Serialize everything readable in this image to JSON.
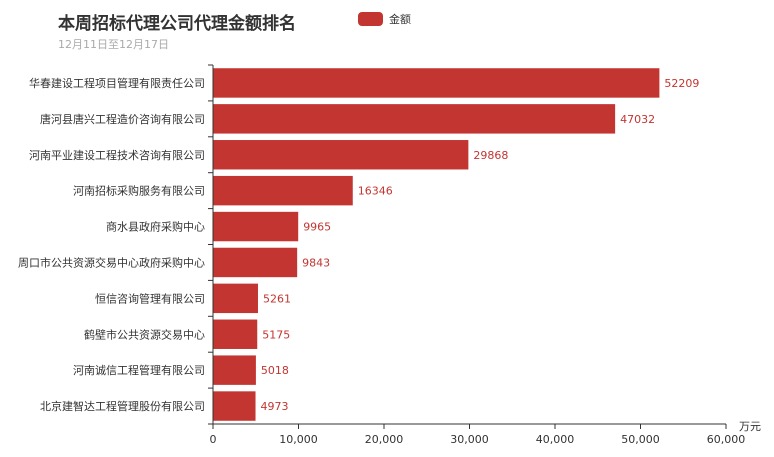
{
  "header": {
    "title": "本周招标代理公司代理金额排名",
    "subtitle": "12月11日至12月17日"
  },
  "legend": {
    "label": "金额",
    "color": "#c23531"
  },
  "colors": {
    "bar": "#c23531",
    "axis": "#333333"
  },
  "chart_data": {
    "type": "bar",
    "orientation": "horizontal",
    "title": "本周招标代理公司代理金额排名",
    "subtitle": "12月11日至12月17日",
    "categories": [
      "华春建设工程项目管理有限责任公司",
      "唐河县唐兴工程造价咨询有限公司",
      "河南平业建设工程技术咨询有限公司",
      "河南招标采购服务有限公司",
      "商水县政府采购中心",
      "周口市公共资源交易中心政府采购中心",
      "恒信咨询管理有限公司",
      "鹤壁市公共资源交易中心",
      "河南诚信工程管理有限公司",
      "北京建智达工程管理股份有限公司"
    ],
    "series": [
      {
        "name": "金额",
        "values": [
          52209,
          47032,
          29868,
          16346,
          9965,
          9843,
          5261,
          5175,
          5018,
          4973
        ]
      }
    ],
    "xlabel": "万元",
    "ylabel": "",
    "xlim": [
      0,
      60000
    ],
    "xticks": [
      0,
      10000,
      20000,
      30000,
      40000,
      50000,
      60000
    ],
    "xtick_labels": [
      "0",
      "10,000",
      "20,000",
      "30,000",
      "40,000",
      "50,000",
      "60,000"
    ],
    "grid": false,
    "legend_position": "top"
  }
}
